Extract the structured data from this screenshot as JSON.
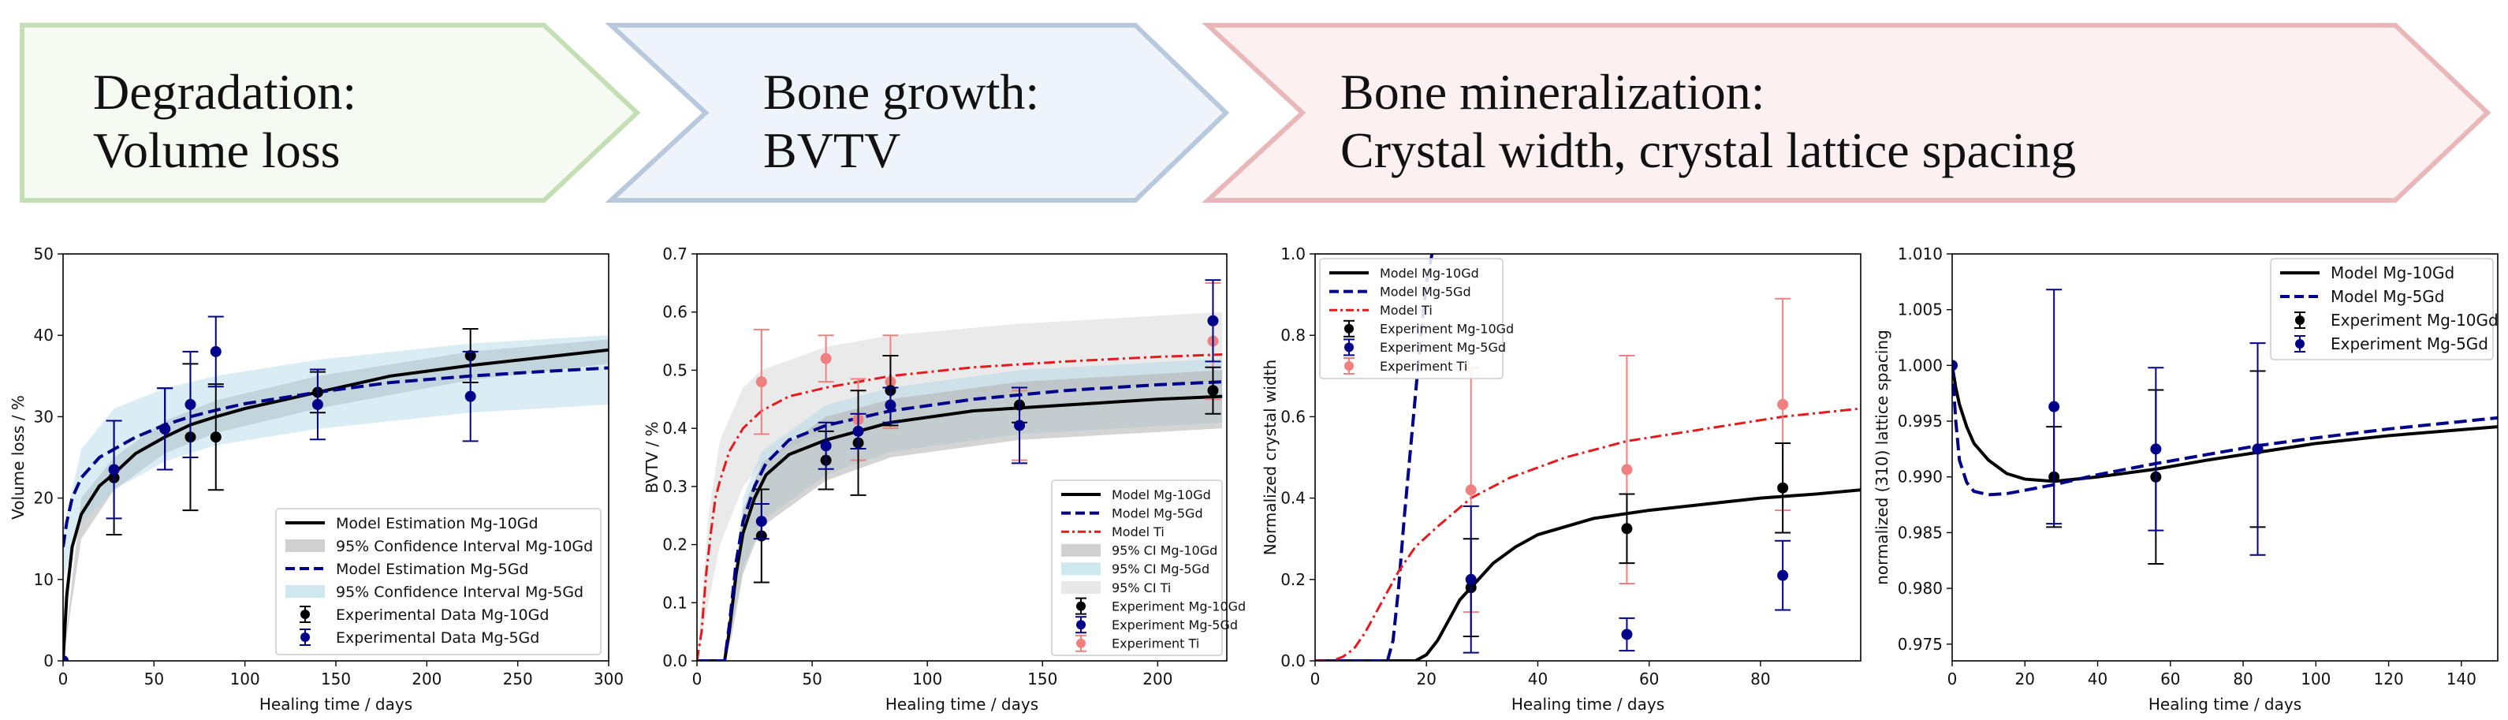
{
  "banners": [
    {
      "line1": "Degradation:",
      "line2": "Volume loss",
      "fill": "#f5fbf2",
      "stroke": "#c3dfb3"
    },
    {
      "line1": "Bone growth:",
      "line2": "BVTV",
      "fill": "#eff4fa",
      "stroke": "#b8c8dd"
    },
    {
      "line1": "Bone mineralization:",
      "line2": "Crystal width, crystal lattice spacing",
      "fill": "#fdf0f0",
      "stroke": "#e9b7b9"
    }
  ],
  "colors": {
    "mg10": "#000000",
    "mg5": "#00008b",
    "ti": "#e41a1c",
    "ti_marker": "#f08080",
    "ci10": "#b0b0b0",
    "ci5": "#add8e6",
    "ciTi": "#d8d8d8"
  },
  "chart_data": [
    {
      "type": "line",
      "xlabel": "Healing time / days",
      "ylabel": "Volume loss / %",
      "xlim": [
        0,
        300
      ],
      "ylim": [
        0,
        50
      ],
      "xticks": [
        0,
        50,
        100,
        150,
        200,
        250,
        300
      ],
      "yticks": [
        0,
        10,
        20,
        30,
        40,
        50
      ],
      "legend_position": "lower-right",
      "legend": [
        "Model Estimation Mg-10Gd",
        "95% Confidence Interval Mg-10Gd",
        "Model Estimation Mg-5Gd",
        "95% Confidence Interval Mg-5Gd",
        "Experimental Data Mg-10Gd",
        "Experimental Data Mg-5Gd"
      ],
      "model_curves": [
        {
          "series": "Mg-10Gd",
          "style": "solid",
          "x": [
            0,
            2,
            5,
            10,
            20,
            28,
            40,
            56,
            70,
            84,
            100,
            140,
            180,
            224,
            260,
            300
          ],
          "y": [
            0,
            8,
            14,
            18,
            21.5,
            23,
            25.5,
            27.5,
            29,
            30,
            31,
            33,
            35,
            36.3,
            37.2,
            38.2
          ]
        },
        {
          "series": "Mg-5Gd",
          "style": "dashed",
          "x": [
            0,
            2,
            5,
            10,
            20,
            28,
            40,
            56,
            70,
            84,
            100,
            140,
            180,
            224,
            260,
            300
          ],
          "y": [
            14,
            17,
            20,
            22.5,
            25,
            26,
            27.5,
            29,
            30,
            30.8,
            31.6,
            33,
            34.2,
            35,
            35.5,
            36
          ]
        }
      ],
      "ci_bands": [
        {
          "series": "Mg-10Gd",
          "x": [
            0,
            10,
            28,
            56,
            84,
            140,
            224,
            300
          ],
          "lower": [
            0,
            15,
            21,
            25.5,
            28,
            31,
            34.5,
            36.5
          ],
          "upper": [
            0,
            20,
            25,
            29.5,
            32,
            35,
            38,
            39.5
          ]
        },
        {
          "series": "Mg-5Gd",
          "x": [
            0,
            10,
            28,
            56,
            84,
            140,
            224,
            300
          ],
          "lower": [
            10,
            17,
            21,
            24.5,
            26.5,
            28.5,
            30.5,
            31.5
          ],
          "upper": [
            16,
            26,
            31,
            33.5,
            35,
            37,
            39,
            40
          ]
        }
      ],
      "experiments": [
        {
          "series": "Mg-10Gd",
          "x": [
            0,
            28,
            56,
            70,
            84,
            140,
            224
          ],
          "y": [
            0,
            22.5,
            28.5,
            27.5,
            27.5,
            33,
            37.5
          ],
          "err": [
            0,
            7,
            5,
            9,
            6.5,
            2.5,
            3.3
          ]
        },
        {
          "series": "Mg-5Gd",
          "x": [
            0,
            28,
            56,
            70,
            84,
            140,
            224
          ],
          "y": [
            0,
            23.5,
            28.5,
            31.5,
            38,
            31.5,
            32.5
          ],
          "err": [
            0,
            6,
            5,
            6.5,
            4.3,
            4.3,
            5.5
          ]
        }
      ]
    },
    {
      "type": "line",
      "xlabel": "Healing time / days",
      "ylabel": "BVTV / %",
      "xlim": [
        0,
        230
      ],
      "ylim": [
        0,
        0.7
      ],
      "xticks": [
        0,
        50,
        100,
        150,
        200
      ],
      "yticks": [
        "0.0",
        "0.1",
        "0.2",
        "0.3",
        "0.4",
        "0.5",
        "0.6",
        "0.7"
      ],
      "legend_position": "lower-right",
      "legend": [
        "Model Mg-10Gd",
        "Model Mg-5Gd",
        "Model Ti",
        "95% CI Mg-10Gd",
        "95% CI Mg-5Gd",
        "95% CI Ti",
        "Experiment Mg-10Gd",
        "Experiment Mg-5Gd",
        "Experiment Ti"
      ],
      "model_curves": [
        {
          "series": "Mg-10Gd",
          "style": "solid",
          "x": [
            0,
            12,
            14,
            17,
            20,
            25,
            30,
            40,
            56,
            84,
            120,
            160,
            200,
            228
          ],
          "y": [
            0,
            0,
            0.05,
            0.15,
            0.22,
            0.28,
            0.32,
            0.355,
            0.38,
            0.41,
            0.43,
            0.44,
            0.45,
            0.455
          ]
        },
        {
          "series": "Mg-5Gd",
          "style": "dashed",
          "x": [
            0,
            12,
            14,
            17,
            20,
            25,
            30,
            40,
            56,
            84,
            120,
            160,
            200,
            228
          ],
          "y": [
            0,
            0,
            0.06,
            0.17,
            0.24,
            0.3,
            0.34,
            0.38,
            0.405,
            0.43,
            0.45,
            0.465,
            0.475,
            0.48
          ]
        },
        {
          "series": "Ti",
          "style": "dashdot",
          "x": [
            0,
            2,
            4,
            6,
            8,
            10,
            14,
            20,
            28,
            40,
            56,
            84,
            120,
            160,
            200,
            228
          ],
          "y": [
            0,
            0.05,
            0.15,
            0.22,
            0.28,
            0.31,
            0.36,
            0.4,
            0.43,
            0.455,
            0.47,
            0.49,
            0.505,
            0.515,
            0.523,
            0.527
          ]
        }
      ],
      "ci_bands": [
        {
          "series": "Ti",
          "x": [
            0,
            5,
            10,
            20,
            28,
            56,
            84,
            140,
            228
          ],
          "lower": [
            0,
            0.1,
            0.2,
            0.3,
            0.34,
            0.4,
            0.43,
            0.46,
            0.48
          ],
          "upper": [
            0,
            0.25,
            0.38,
            0.47,
            0.5,
            0.54,
            0.56,
            0.58,
            0.6
          ]
        },
        {
          "series": "Mg-5Gd",
          "x": [
            0,
            12,
            15,
            20,
            28,
            56,
            84,
            140,
            228
          ],
          "lower": [
            0,
            0,
            0.05,
            0.16,
            0.24,
            0.32,
            0.36,
            0.39,
            0.41
          ],
          "upper": [
            0,
            0,
            0.1,
            0.28,
            0.36,
            0.44,
            0.47,
            0.5,
            0.52
          ]
        },
        {
          "series": "Mg-10Gd",
          "x": [
            0,
            12,
            15,
            20,
            28,
            56,
            84,
            140,
            228
          ],
          "lower": [
            0,
            0,
            0.04,
            0.15,
            0.23,
            0.31,
            0.35,
            0.38,
            0.4
          ],
          "upper": [
            0,
            0,
            0.08,
            0.26,
            0.34,
            0.42,
            0.45,
            0.48,
            0.5
          ]
        }
      ],
      "experiments": [
        {
          "series": "Ti",
          "x": [
            28,
            56,
            70,
            84,
            140,
            224
          ],
          "y": [
            0.48,
            0.52,
            0.415,
            0.48,
            0.405,
            0.55
          ],
          "err": [
            0.09,
            0.04,
            0.07,
            0.08,
            0.06,
            0.1
          ]
        },
        {
          "series": "Mg-10Gd",
          "x": [
            28,
            56,
            70,
            84,
            140,
            224
          ],
          "y": [
            0.215,
            0.345,
            0.375,
            0.465,
            0.44,
            0.465
          ],
          "err": [
            0.08,
            0.05,
            0.09,
            0.06,
            0.03,
            0.04
          ]
        },
        {
          "series": "Mg-5Gd",
          "x": [
            28,
            56,
            70,
            84,
            140,
            224
          ],
          "y": [
            0.24,
            0.37,
            0.395,
            0.44,
            0.405,
            0.585
          ],
          "err": [
            0.03,
            0.04,
            0.03,
            0.03,
            0.065,
            0.07
          ]
        }
      ]
    },
    {
      "type": "line",
      "xlabel": "Healing time / days",
      "ylabel": "Normalized crystal width",
      "xlim": [
        0,
        98
      ],
      "ylim": [
        0,
        1.0
      ],
      "xticks": [
        0,
        20,
        40,
        60,
        80
      ],
      "yticks": [
        "0.0",
        "0.2",
        "0.4",
        "0.6",
        "0.8",
        "1.0"
      ],
      "legend_position": "upper-left",
      "legend": [
        "Model Mg-10Gd",
        "Model Mg-5Gd",
        "Model Ti",
        "Experiment Mg-10Gd",
        "Experiment Mg-5Gd",
        "Experiment Ti"
      ],
      "model_curves": [
        {
          "series": "Mg-10Gd",
          "style": "solid",
          "x": [
            0,
            18,
            20,
            22,
            24,
            26,
            28,
            32,
            36,
            40,
            50,
            60,
            70,
            80,
            90,
            98
          ],
          "y": [
            0,
            0,
            0.015,
            0.05,
            0.1,
            0.15,
            0.18,
            0.24,
            0.28,
            0.31,
            0.35,
            0.37,
            0.385,
            0.4,
            0.41,
            0.42
          ]
        },
        {
          "series": "Mg-5Gd",
          "style": "dashed",
          "x": [
            0,
            13,
            14,
            15,
            16,
            17,
            18,
            19,
            20,
            21
          ],
          "y": [
            0,
            0,
            0.05,
            0.18,
            0.35,
            0.5,
            0.65,
            0.8,
            0.93,
            1.0
          ]
        },
        {
          "series": "Ti",
          "style": "dashdot",
          "x": [
            0,
            3,
            5,
            7,
            9,
            11,
            13,
            15,
            18,
            22,
            28,
            35,
            45,
            56,
            70,
            84,
            98
          ],
          "y": [
            0,
            0,
            0.01,
            0.03,
            0.07,
            0.12,
            0.17,
            0.22,
            0.28,
            0.33,
            0.4,
            0.45,
            0.5,
            0.54,
            0.57,
            0.6,
            0.62
          ]
        }
      ],
      "ci_bands": [],
      "experiments": [
        {
          "series": "Ti",
          "x": [
            28,
            56,
            84
          ],
          "y": [
            0.42,
            0.47,
            0.63
          ],
          "err": [
            0.3,
            0.28,
            0.26
          ]
        },
        {
          "series": "Mg-10Gd",
          "x": [
            28,
            56,
            84
          ],
          "y": [
            0.18,
            0.325,
            0.425
          ],
          "err": [
            0.12,
            0.085,
            0.11
          ]
        },
        {
          "series": "Mg-5Gd",
          "x": [
            28,
            56,
            84
          ],
          "y": [
            0.2,
            0.065,
            0.21
          ],
          "err": [
            0.18,
            0.04,
            0.085
          ]
        }
      ]
    },
    {
      "type": "line",
      "xlabel": "Healing time / days",
      "ylabel": "normalized (310) lattice spacing",
      "xlim": [
        0,
        150
      ],
      "ylim": [
        0.9735,
        1.01
      ],
      "xticks": [
        0,
        20,
        40,
        60,
        80,
        100,
        120,
        140
      ],
      "yticks": [
        "0.975",
        "0.980",
        "0.985",
        "0.990",
        "0.995",
        "1.000",
        "1.005",
        "1.010"
      ],
      "legend_position": "upper-right",
      "legend": [
        "Model Mg-10Gd",
        "Model Mg-5Gd",
        "Experiment Mg-10Gd",
        "Experiment Mg-5Gd"
      ],
      "model_curves": [
        {
          "series": "Mg-10Gd",
          "style": "solid",
          "x": [
            0,
            1,
            2,
            4,
            6,
            10,
            15,
            20,
            28,
            40,
            56,
            70,
            84,
            100,
            120,
            150
          ],
          "y": [
            1.0,
            0.998,
            0.9965,
            0.9945,
            0.993,
            0.9915,
            0.9903,
            0.9898,
            0.9896,
            0.99,
            0.9907,
            0.9915,
            0.9922,
            0.993,
            0.9937,
            0.9945
          ]
        },
        {
          "series": "Mg-5Gd",
          "style": "dashed",
          "x": [
            0,
            1,
            2,
            4,
            6,
            10,
            15,
            20,
            28,
            40,
            56,
            70,
            84,
            100,
            120,
            150
          ],
          "y": [
            1.0,
            0.995,
            0.9915,
            0.9895,
            0.9887,
            0.9884,
            0.9885,
            0.9888,
            0.9893,
            0.9902,
            0.9912,
            0.992,
            0.9928,
            0.9935,
            0.9943,
            0.9953
          ]
        }
      ],
      "ci_bands": [],
      "experiments": [
        {
          "series": "Mg-10Gd",
          "x": [
            28,
            56,
            84
          ],
          "y": [
            0.99,
            0.99,
            0.9925
          ],
          "err": [
            0.0045,
            0.0078,
            0.007
          ]
        },
        {
          "series": "Mg-5Gd",
          "x": [
            0,
            28,
            56,
            84
          ],
          "y": [
            1.0,
            0.9963,
            0.9925,
            0.9925
          ],
          "err": [
            0,
            0.0105,
            0.0073,
            0.0095
          ]
        }
      ]
    }
  ]
}
